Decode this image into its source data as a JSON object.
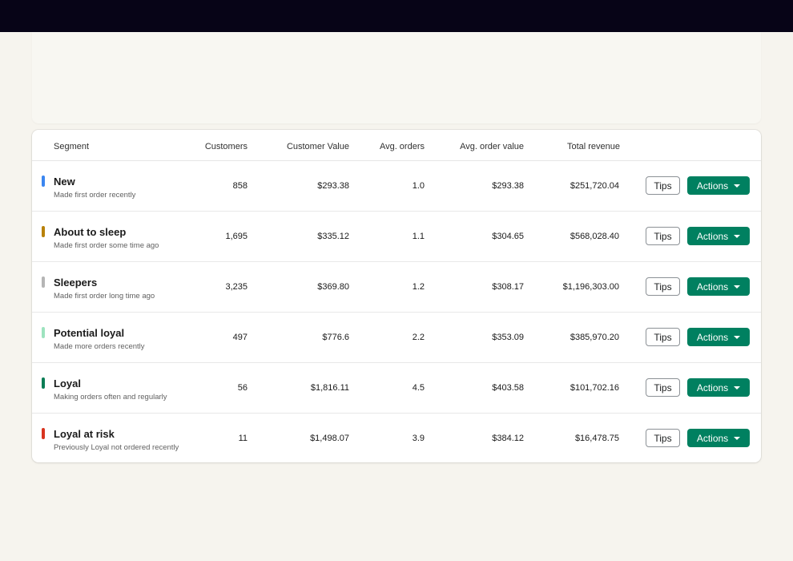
{
  "table": {
    "headers": {
      "segment": "Segment",
      "customers": "Customers",
      "customer_value": "Customer Value",
      "avg_orders": "Avg. orders",
      "avg_order_value": "Avg. order value",
      "total_revenue": "Total revenue"
    },
    "tips_label": "Tips",
    "actions_label": "Actions",
    "rows": [
      {
        "name": "New",
        "description": "Made first order recently",
        "customers": "858",
        "customer_value": "$293.38",
        "avg_orders": "1.0",
        "avg_order_value": "$293.38",
        "total_revenue": "$251,720.04",
        "color": "#3b86f0"
      },
      {
        "name": "About to sleep",
        "description": "Made first order some time ago",
        "customers": "1,695",
        "customer_value": "$335.12",
        "avg_orders": "1.1",
        "avg_order_value": "$304.65",
        "total_revenue": "$568,028.40",
        "color": "#b88109"
      },
      {
        "name": "Sleepers",
        "description": "Made first order long time ago",
        "customers": "3,235",
        "customer_value": "$369.80",
        "avg_orders": "1.2",
        "avg_order_value": "$308.17",
        "total_revenue": "$1,196,303.00",
        "color": "#b5b5b5"
      },
      {
        "name": "Potential loyal",
        "description": "Made more orders recently",
        "customers": "497",
        "customer_value": "$776.6",
        "avg_orders": "2.2",
        "avg_order_value": "$353.09",
        "total_revenue": "$385,970.20",
        "color": "#9de3bf"
      },
      {
        "name": "Loyal",
        "description": "Making orders often and regularly",
        "customers": "56",
        "customer_value": "$1,816.11",
        "avg_orders": "4.5",
        "avg_order_value": "$403.58",
        "total_revenue": "$101,702.16",
        "color": "#0a7d55"
      },
      {
        "name": "Loyal at risk",
        "description": "Previously Loyal not ordered recently",
        "customers": "11",
        "customer_value": "$1,498.07",
        "avg_orders": "3.9",
        "avg_order_value": "$384.12",
        "total_revenue": "$16,478.75",
        "color": "#d8341f"
      }
    ]
  }
}
